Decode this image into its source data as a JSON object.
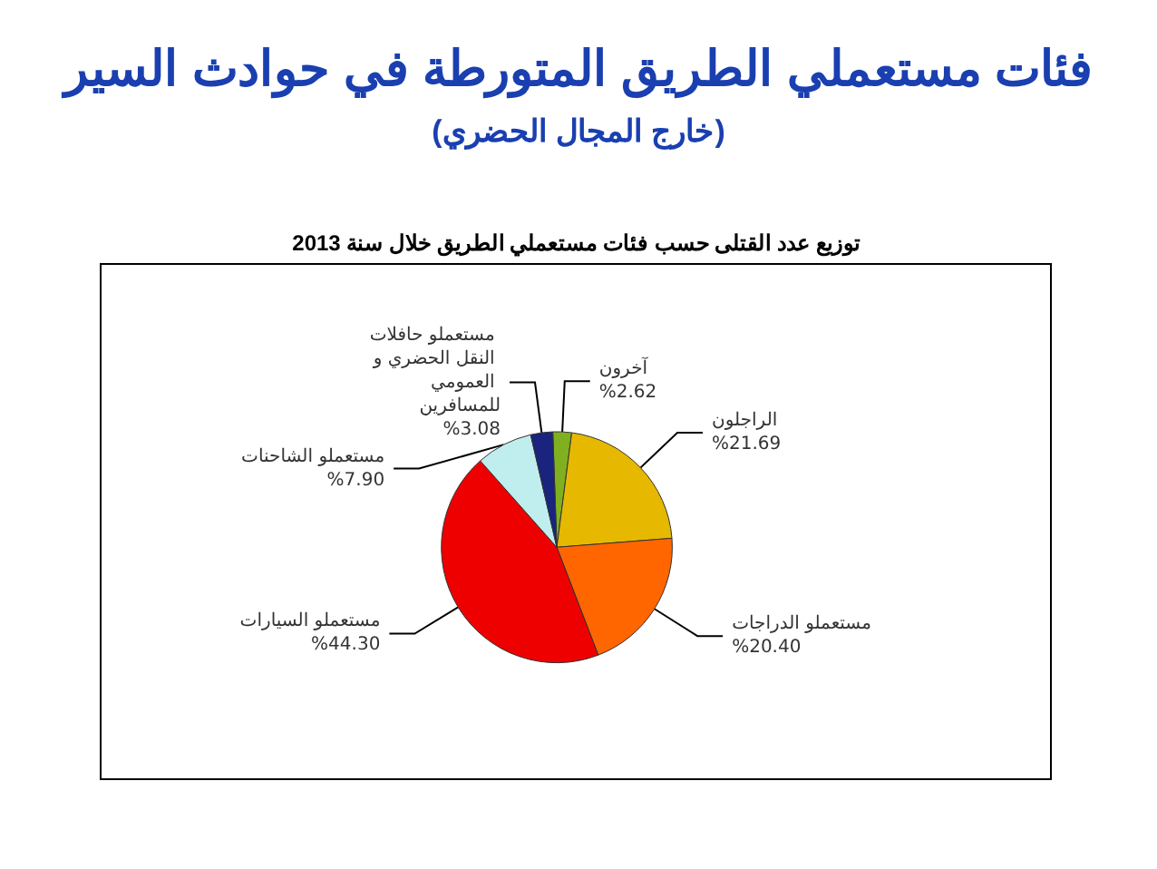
{
  "chart_data": {
    "type": "pie",
    "title": "فئات مستعملي الطريق المتورطة في حوادث السير",
    "subtitle": "(خارج المجال الحضري)",
    "annotations": [
      "توزيع عدد القتلى حسب فئات مستعملي الطريق خلال سنة 2013"
    ],
    "categories": [
      "آخرون",
      "الراجلون",
      "مستعملو الدراجات",
      "مستعملو السيارات",
      "مستعملو الشاحنات",
      "مستعملو حافلات النقل الحضري و العمومي للمسافرين"
    ],
    "values": [
      2.62,
      21.69,
      20.4,
      44.3,
      7.9,
      3.08
    ],
    "value_labels": [
      "%2.62",
      "%21.69",
      "%20.40",
      "%44.30",
      "%7.90",
      "%3.08"
    ],
    "colors": [
      "#80b020",
      "#e6b800",
      "#ff6600",
      "#ee0000",
      "#c0eeee",
      "#1a237e"
    ],
    "legend": false
  }
}
